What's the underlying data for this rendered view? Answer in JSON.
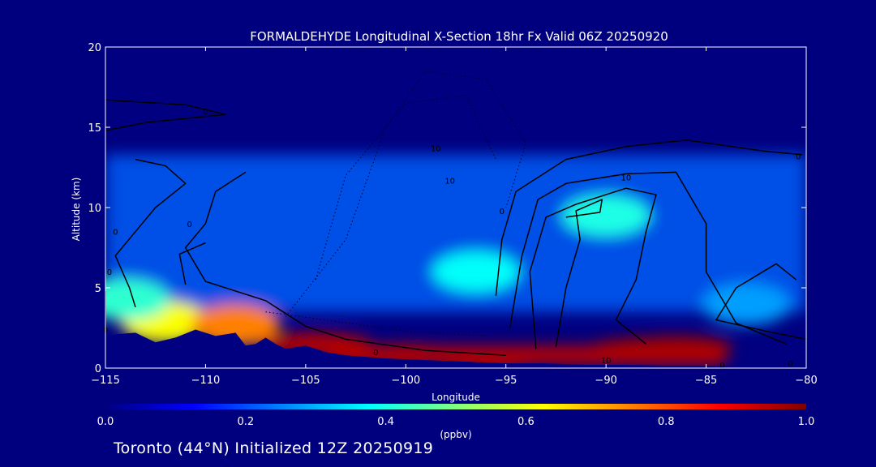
{
  "chart_data": {
    "type": "heatmap",
    "title": "FORMALDEHYDE Longitudinal X-Section 18hr  Fx Valid 06Z 20250920",
    "xlabel": "Longitude",
    "ylabel": "Altitude (km)",
    "xlim": [
      -115,
      -80
    ],
    "ylim": [
      0,
      20
    ],
    "xticks": [
      -115,
      -110,
      -105,
      -100,
      -95,
      -90,
      -85,
      -80
    ],
    "yticks": [
      0,
      5,
      10,
      15,
      20
    ],
    "colorbar": {
      "min": 0.0,
      "max": 1.0,
      "ticks": [
        "0.0",
        "0.2",
        "0.4",
        "0.6",
        "0.8",
        "1.0"
      ],
      "unit": "(ppbv)",
      "colors": [
        "#000080",
        "#0000ff",
        "#0080ff",
        "#00ffff",
        "#80ff80",
        "#ffff00",
        "#ff8000",
        "#ff0000",
        "#800000"
      ]
    },
    "terrain": [
      [
        -115,
        1.8
      ],
      [
        -114.5,
        2.1
      ],
      [
        -113.5,
        2.2
      ],
      [
        -112.5,
        1.6
      ],
      [
        -111.5,
        1.9
      ],
      [
        -110.5,
        2.4
      ],
      [
        -109.5,
        2.0
      ],
      [
        -108.5,
        2.2
      ],
      [
        -108,
        1.4
      ],
      [
        -107.5,
        1.5
      ],
      [
        -107,
        1.9
      ],
      [
        -106.5,
        1.5
      ],
      [
        -106,
        1.2
      ],
      [
        -105,
        1.4
      ],
      [
        -104,
        1.0
      ],
      [
        -103,
        0.8
      ],
      [
        -101,
        0.6
      ],
      [
        -99,
        0.5
      ],
      [
        -97,
        0.4
      ],
      [
        -95,
        0.3
      ],
      [
        -93,
        0.3
      ],
      [
        -91,
        0.2
      ],
      [
        -89,
        0.2
      ],
      [
        -87,
        0.15
      ],
      [
        -85,
        0.15
      ],
      [
        -83,
        0.1
      ],
      [
        -81,
        0.1
      ],
      [
        -80,
        0.1
      ]
    ],
    "concentration_field": {
      "description_free": true,
      "background": 0.08,
      "features": [
        {
          "lon": -112,
          "alt": 2.9,
          "value": 0.62
        },
        {
          "lon": -108.5,
          "alt": 2.7,
          "value": 0.75
        },
        {
          "lon": -114,
          "alt": 4.3,
          "value": 0.42
        },
        {
          "lon": -104.5,
          "alt": 1.5,
          "value": 0.95
        },
        {
          "lon": -100,
          "alt": 0.8,
          "value": 0.98
        },
        {
          "lon": -96,
          "alt": 0.6,
          "value": 0.95
        },
        {
          "lon": -88,
          "alt": 1.2,
          "value": 1.0
        },
        {
          "lon": -86.5,
          "alt": 1.3,
          "value": 0.98
        },
        {
          "lon": -90,
          "alt": 9.5,
          "value": 0.4
        },
        {
          "lon": -96.5,
          "alt": 6.0,
          "value": 0.38
        },
        {
          "lon": -83,
          "alt": 4.0,
          "value": 0.28
        }
      ]
    },
    "contour_labels": [
      {
        "text": "0",
        "lon": -110,
        "alt": 16.0
      },
      {
        "text": "0",
        "lon": -114.5,
        "alt": 8.5
      },
      {
        "text": "0",
        "lon": -110.8,
        "alt": 9.0
      },
      {
        "text": "0",
        "lon": -114.8,
        "alt": 6.0
      },
      {
        "text": "0",
        "lon": -115,
        "alt": 2.4
      },
      {
        "text": "0",
        "lon": -101.5,
        "alt": 1.0
      },
      {
        "text": "10",
        "lon": -98.5,
        "alt": 13.7
      },
      {
        "text": "10",
        "lon": -97.8,
        "alt": 11.7
      },
      {
        "text": "10",
        "lon": -89,
        "alt": 11.9
      },
      {
        "text": "0",
        "lon": -95.2,
        "alt": 9.8
      },
      {
        "text": "10",
        "lon": -90,
        "alt": 0.5
      },
      {
        "text": "0",
        "lon": -84.2,
        "alt": 0.2
      },
      {
        "text": "0",
        "lon": -80.8,
        "alt": 0.3
      },
      {
        "text": "0",
        "lon": -80.4,
        "alt": 13.2
      }
    ]
  },
  "footer": {
    "text": "Toronto (44°N) Initialized 12Z 20250919"
  }
}
